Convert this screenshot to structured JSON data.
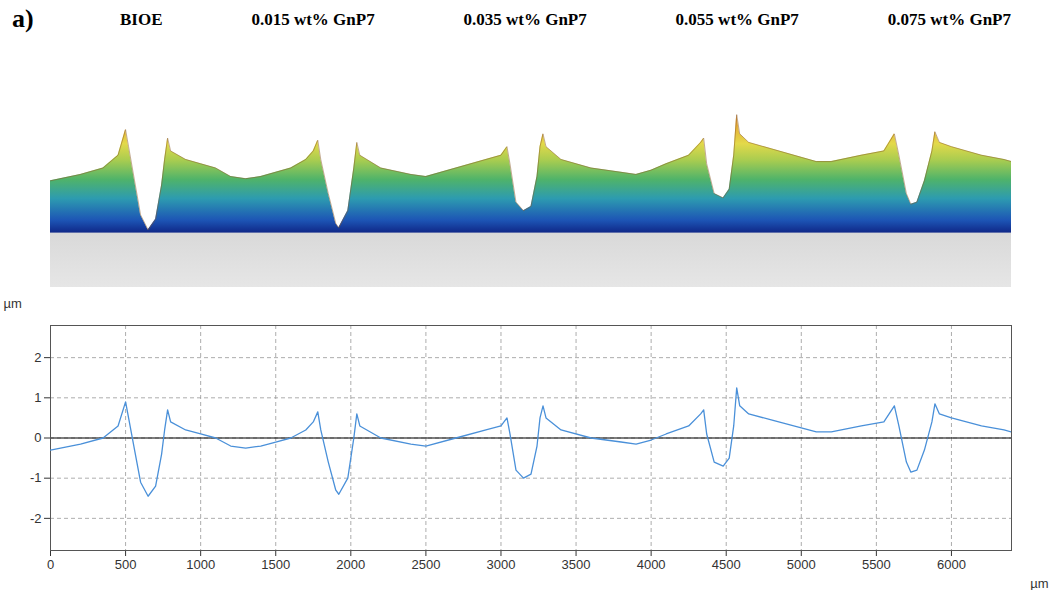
{
  "chart_data": {
    "type": "line",
    "panel_label": "a)",
    "annotations": [
      "BIOE",
      "0.015 wt% GnP7",
      "0.035 wt% GnP7",
      "0.055 wt% GnP7",
      "0.075 wt% GnP7"
    ],
    "xlabel": "µm",
    "ylabel": "µm",
    "x": [
      0,
      200,
      350,
      450,
      500,
      520,
      560,
      600,
      650,
      700,
      740,
      760,
      780,
      800,
      900,
      1000,
      1100,
      1200,
      1300,
      1400,
      1500,
      1600,
      1700,
      1750,
      1780,
      1800,
      1850,
      1900,
      1920,
      1980,
      2020,
      2040,
      2060,
      2200,
      2400,
      2500,
      2700,
      2900,
      3000,
      3040,
      3060,
      3100,
      3150,
      3200,
      3240,
      3260,
      3280,
      3300,
      3400,
      3600,
      3800,
      3900,
      4000,
      4100,
      4250,
      4330,
      4350,
      4370,
      4420,
      4480,
      4520,
      4550,
      4570,
      4590,
      4650,
      4800,
      5000,
      5100,
      5200,
      5400,
      5550,
      5620,
      5650,
      5700,
      5730,
      5770,
      5820,
      5870,
      5890,
      5920,
      6000,
      6100,
      6200,
      6350,
      6400
    ],
    "values": [
      -0.3,
      -0.15,
      0.0,
      0.3,
      0.9,
      0.5,
      -0.3,
      -1.1,
      -1.45,
      -1.2,
      -0.4,
      0.2,
      0.7,
      0.4,
      0.2,
      0.1,
      0.0,
      -0.2,
      -0.25,
      -0.2,
      -0.1,
      0.0,
      0.2,
      0.4,
      0.65,
      0.2,
      -0.6,
      -1.3,
      -1.4,
      -1.0,
      0.0,
      0.6,
      0.3,
      0.0,
      -0.15,
      -0.2,
      0.0,
      0.2,
      0.3,
      0.5,
      0.1,
      -0.8,
      -1.0,
      -0.9,
      -0.2,
      0.5,
      0.8,
      0.5,
      0.2,
      0.0,
      -0.1,
      -0.15,
      -0.05,
      0.1,
      0.3,
      0.6,
      0.7,
      0.1,
      -0.6,
      -0.7,
      -0.5,
      0.3,
      1.25,
      0.8,
      0.6,
      0.45,
      0.25,
      0.15,
      0.15,
      0.3,
      0.4,
      0.8,
      0.3,
      -0.6,
      -0.85,
      -0.8,
      -0.3,
      0.4,
      0.85,
      0.6,
      0.5,
      0.4,
      0.3,
      0.2,
      0.15
    ],
    "color": "#4a90d9",
    "xlim": [
      0,
      6400
    ],
    "ylim": [
      -2.8,
      2.8
    ],
    "xticks": [
      0,
      500,
      1000,
      1500,
      2000,
      2500,
      3000,
      3500,
      4000,
      4500,
      5000,
      5500,
      6000
    ],
    "yticks": [
      -2,
      -1,
      0,
      1,
      2
    ],
    "grid": true
  }
}
